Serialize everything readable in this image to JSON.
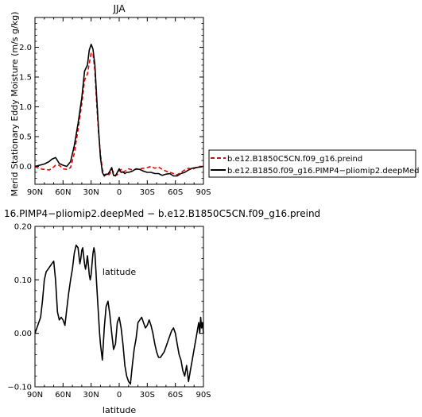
{
  "chart_data": [
    {
      "type": "line",
      "title": "JJA",
      "xlabel": "latitude",
      "ylabel": "Merid Stationary Eddy Moisture (m/s g/kg)",
      "xlim": [
        90,
        -90
      ],
      "ylim": [
        -0.3,
        2.5
      ],
      "x_ticks": [
        90,
        60,
        30,
        0,
        -30,
        -60,
        -90
      ],
      "x_tick_labels": [
        "90N",
        "60N",
        "30N",
        "0",
        "30S",
        "60S",
        "90S"
      ],
      "y_ticks": [
        0,
        0.5,
        1,
        1.5,
        2
      ],
      "y_tick_labels": [
        "0.0",
        "0.5",
        "1.0",
        "1.5",
        "2.0"
      ],
      "grid": false,
      "legend_position": "right",
      "series": [
        {
          "name": "b.e12.B1850C5CN.f09_g16.preind",
          "color": "#ee0000",
          "dash": true,
          "x": [
            90,
            85,
            80,
            75,
            72,
            68,
            64,
            60,
            56,
            52,
            48,
            44,
            40,
            37,
            34,
            32,
            30,
            28,
            26,
            24,
            22,
            20,
            18,
            16,
            14,
            12,
            10,
            8,
            6,
            4,
            2,
            0,
            -2,
            -4,
            -6,
            -8,
            -10,
            -14,
            -18,
            -22,
            -26,
            -30,
            -34,
            -38,
            -42,
            -46,
            -50,
            -54,
            -58,
            -62,
            -66,
            -70,
            -74,
            -78,
            -82,
            -86,
            -90
          ],
          "values": [
            0,
            -0.04,
            -0.05,
            -0.06,
            -0.04,
            0.02,
            0.02,
            -0.04,
            -0.05,
            -0.02,
            0.22,
            0.62,
            1.05,
            1.45,
            1.55,
            1.73,
            1.9,
            1.9,
            1.6,
            1.05,
            0.55,
            0.2,
            -0.05,
            -0.14,
            -0.13,
            -0.16,
            -0.12,
            -0.05,
            -0.1,
            -0.15,
            -0.14,
            -0.08,
            -0.05,
            -0.1,
            -0.08,
            -0.06,
            -0.04,
            -0.06,
            -0.05,
            -0.04,
            -0.03,
            -0.02,
            0,
            -0.03,
            -0.01,
            -0.05,
            -0.08,
            -0.1,
            -0.12,
            -0.14,
            -0.1,
            -0.06,
            -0.03,
            -0.05,
            -0.02,
            0,
            0
          ]
        },
        {
          "name": "b.e12.B1850.f09_g16.PIMP4−pliomip2.deepMed",
          "color": "#000000",
          "dash": false,
          "x": [
            90,
            85,
            80,
            75,
            72,
            68,
            64,
            60,
            56,
            52,
            48,
            44,
            40,
            37,
            34,
            32,
            30,
            28,
            26,
            24,
            22,
            20,
            18,
            16,
            14,
            12,
            10,
            8,
            6,
            4,
            2,
            0,
            -2,
            -4,
            -6,
            -8,
            -10,
            -14,
            -18,
            -22,
            -26,
            -30,
            -34,
            -38,
            -42,
            -46,
            -50,
            -54,
            -58,
            -62,
            -66,
            -70,
            -74,
            -78,
            -82,
            -86,
            -90
          ],
          "values": [
            0,
            0.02,
            0.04,
            0.08,
            0.12,
            0.15,
            0.05,
            0.02,
            0,
            0.08,
            0.35,
            0.72,
            1.15,
            1.6,
            1.7,
            1.95,
            2.05,
            1.97,
            1.7,
            1.15,
            0.6,
            0.15,
            -0.1,
            -0.16,
            -0.13,
            -0.13,
            -0.08,
            -0.02,
            -0.15,
            -0.16,
            -0.1,
            -0.04,
            -0.1,
            -0.09,
            -0.12,
            -0.1,
            -0.1,
            -0.08,
            -0.04,
            -0.05,
            -0.08,
            -0.1,
            -0.1,
            -0.12,
            -0.12,
            -0.15,
            -0.13,
            -0.12,
            -0.16,
            -0.16,
            -0.12,
            -0.1,
            -0.06,
            -0.03,
            -0.02,
            -0.01,
            0
          ]
        }
      ]
    },
    {
      "type": "line",
      "title": "16.PIMP4−pliomip2.deepMed − b.e12.B1850C5CN.f09_g16.preind",
      "xlabel": "latitude",
      "ylabel": "",
      "xlim": [
        90,
        -90
      ],
      "ylim": [
        -0.1,
        0.2
      ],
      "x_ticks": [
        90,
        60,
        30,
        0,
        -30,
        -60,
        -90
      ],
      "x_tick_labels": [
        "90N",
        "60N",
        "30N",
        "0",
        "30S",
        "60S",
        "90S"
      ],
      "y_ticks": [
        -0.1,
        0,
        0.1,
        0.2
      ],
      "y_tick_labels": [
        "−0.10",
        "0.00",
        "0.10",
        "0.20"
      ],
      "grid": false,
      "series": [
        {
          "color": "#000000",
          "x": [
            90,
            88,
            86,
            84,
            82,
            80,
            78,
            76,
            74,
            72,
            70,
            68,
            66,
            64,
            62,
            60,
            58,
            56,
            54,
            52,
            50,
            48,
            46,
            44,
            42,
            41,
            40,
            39,
            38,
            37,
            36,
            35,
            34,
            33,
            32,
            31,
            30,
            29,
            28,
            27,
            26,
            25,
            24,
            23,
            22,
            21,
            20,
            19,
            18,
            16,
            14,
            12,
            10,
            8,
            6,
            4,
            2,
            0,
            -2,
            -4,
            -6,
            -8,
            -10,
            -12,
            -14,
            -16,
            -18,
            -20,
            -22,
            -24,
            -26,
            -28,
            -30,
            -32,
            -34,
            -36,
            -38,
            -40,
            -42,
            -44,
            -46,
            -48,
            -50,
            -52,
            -54,
            -56,
            -58,
            -60,
            -62,
            -64,
            -66,
            -68,
            -70,
            -72,
            -74,
            -76,
            -78,
            -80,
            -82,
            -84,
            -85,
            -86,
            -87,
            -88,
            -89,
            -90
          ],
          "values": [
            0,
            0.01,
            0.02,
            0.03,
            0.06,
            0.1,
            0.115,
            0.12,
            0.125,
            0.13,
            0.135,
            0.1,
            0.04,
            0.025,
            0.03,
            0.025,
            0.015,
            0.045,
            0.075,
            0.1,
            0.12,
            0.15,
            0.165,
            0.16,
            0.13,
            0.14,
            0.155,
            0.16,
            0.145,
            0.13,
            0.12,
            0.13,
            0.145,
            0.13,
            0.11,
            0.1,
            0.11,
            0.13,
            0.15,
            0.16,
            0.15,
            0.12,
            0.09,
            0.06,
            0.03,
            0.0,
            -0.02,
            -0.035,
            -0.05,
            0.01,
            0.05,
            0.06,
            0.035,
            0.0,
            -0.03,
            -0.02,
            0.02,
            0.03,
            0.01,
            -0.02,
            -0.06,
            -0.08,
            -0.09,
            -0.095,
            -0.06,
            -0.03,
            -0.01,
            0.02,
            0.025,
            0.03,
            0.02,
            0.01,
            0.015,
            0.025,
            0.015,
            0.0,
            -0.02,
            -0.035,
            -0.045,
            -0.045,
            -0.04,
            -0.035,
            -0.025,
            -0.015,
            -0.005,
            0.005,
            0.01,
            0.0,
            -0.02,
            -0.04,
            -0.05,
            -0.07,
            -0.08,
            -0.06,
            -0.09,
            -0.07,
            -0.05,
            -0.03,
            -0.01,
            0.01,
            0.02,
            0.0,
            0.03,
            0.01,
            0.02,
            0.0
          ]
        }
      ]
    }
  ]
}
